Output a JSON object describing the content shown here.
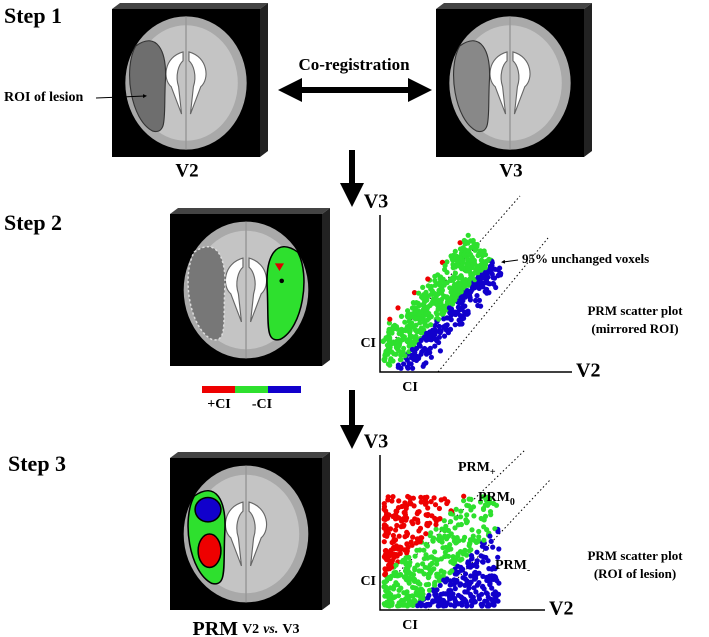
{
  "step1": {
    "label": "Step 1",
    "roi_label": "ROI of lesion",
    "arrow_label": "Co-registration",
    "left_caption": "V2",
    "right_caption": "V3"
  },
  "step2": {
    "label": "Step 2",
    "plot": {
      "y_axis": "V3",
      "x_axis": "V2",
      "x_ci": "CI",
      "y_ci": "CI",
      "band_note": "95% unchanged voxels",
      "caption": [
        "PRM scatter plot",
        "(mirrored ROI)"
      ]
    },
    "colorbar": {
      "pos": "+CI",
      "neg": "-CI"
    }
  },
  "step3": {
    "label": "Step 3",
    "plot": {
      "y_axis": "V3",
      "x_axis": "V2",
      "x_ci": "CI",
      "y_ci": "CI",
      "caption": [
        "PRM scatter plot",
        "(ROI of lesion)"
      ],
      "regions": [
        {
          "base": "PRM",
          "sub": "+"
        },
        {
          "base": "PRM",
          "sub": "0"
        },
        {
          "base": "PRM",
          "sub": "-"
        }
      ]
    },
    "brain_caption": {
      "main": "PRM",
      "sub": "V2",
      "vs": "vs.",
      "sub2": "V3"
    }
  }
}
